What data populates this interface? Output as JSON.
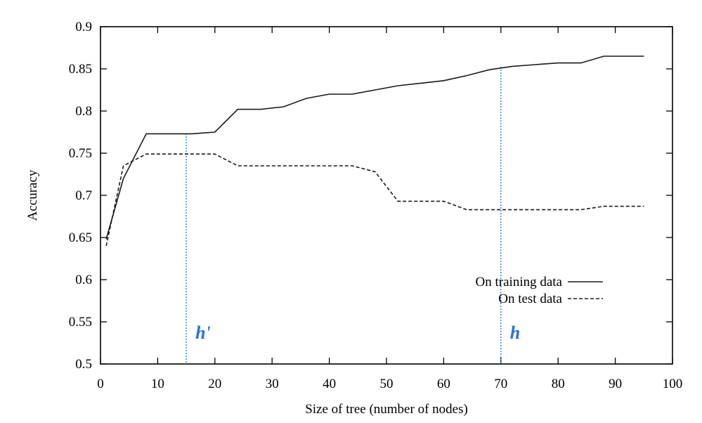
{
  "colors": {
    "axis": "#000000",
    "series_solid": "#1a1a1a",
    "series_dashed": "#1a1a1a",
    "marker": "#2a6fd6"
  },
  "chart_data": {
    "type": "line",
    "title": "",
    "xlabel": "Size of tree (number of nodes)",
    "ylabel": "Accuracy",
    "xlim": [
      0,
      100
    ],
    "ylim": [
      0.5,
      0.9
    ],
    "x_ticks": [
      0,
      10,
      20,
      30,
      40,
      50,
      60,
      70,
      80,
      90,
      100
    ],
    "y_ticks": [
      0.5,
      0.55,
      0.6,
      0.65,
      0.7,
      0.75,
      0.8,
      0.85,
      0.9
    ],
    "x_tick_labels": [
      "0",
      "10",
      "20",
      "30",
      "40",
      "50",
      "60",
      "70",
      "80",
      "90",
      "100"
    ],
    "y_tick_labels": [
      "0.5",
      "0.55",
      "0.6",
      "0.65",
      "0.7",
      "0.75",
      "0.8",
      "0.85",
      "0.9"
    ],
    "grid": false,
    "legend_position": "bottom-right",
    "series": [
      {
        "name": "On training data",
        "style": "solid",
        "x": [
          1,
          4,
          8,
          12,
          16,
          20,
          24,
          28,
          32,
          36,
          40,
          44,
          48,
          52,
          56,
          60,
          64,
          68,
          72,
          76,
          80,
          84,
          88,
          95
        ],
        "y": [
          0.648,
          0.72,
          0.773,
          0.773,
          0.773,
          0.775,
          0.802,
          0.802,
          0.805,
          0.815,
          0.82,
          0.82,
          0.825,
          0.83,
          0.833,
          0.836,
          0.842,
          0.849,
          0.853,
          0.855,
          0.857,
          0.857,
          0.865,
          0.865
        ]
      },
      {
        "name": "On test data",
        "style": "dashed",
        "x": [
          1,
          4,
          8,
          12,
          16,
          20,
          24,
          28,
          32,
          36,
          40,
          44,
          48,
          52,
          56,
          60,
          64,
          68,
          72,
          76,
          80,
          84,
          88,
          95
        ],
        "y": [
          0.64,
          0.735,
          0.749,
          0.749,
          0.749,
          0.749,
          0.735,
          0.735,
          0.735,
          0.735,
          0.735,
          0.735,
          0.728,
          0.693,
          0.693,
          0.693,
          0.683,
          0.683,
          0.683,
          0.683,
          0.683,
          0.683,
          0.687,
          0.687
        ]
      }
    ],
    "reference_lines": [
      {
        "label": "h'",
        "x": 15
      },
      {
        "label": "h",
        "x": 70
      }
    ]
  }
}
